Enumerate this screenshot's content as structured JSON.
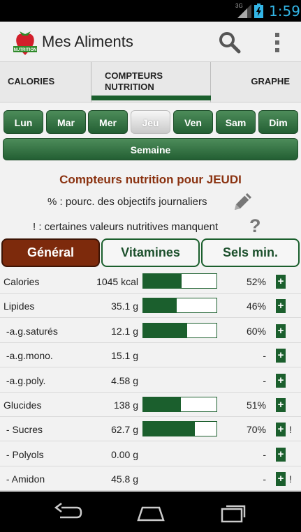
{
  "status_bar": {
    "network": "3G",
    "time": "1:59"
  },
  "app": {
    "title": "Mes Aliments",
    "logo_text": "Bretonte NUTRITION"
  },
  "tabs": [
    {
      "label": "CALORIES"
    },
    {
      "label": "COMPTEURS\nNUTRITION"
    },
    {
      "label": "GRAPHE"
    }
  ],
  "days": [
    "Lun",
    "Mar",
    "Mer",
    "Jeu",
    "Ven",
    "Sam",
    "Dim"
  ],
  "selected_day": "Jeu",
  "week_label": "Semaine",
  "heading": "Compteurs nutrition pour JEUDI",
  "info_percent": "% : pourc. des objectifs journaliers",
  "info_missing": "! : certaines valeurs nutritives manquent",
  "help_mark": "?",
  "subtabs": [
    {
      "label": "Général",
      "active": true
    },
    {
      "label": "Vitamines",
      "active": false
    },
    {
      "label": "Sels min.",
      "active": false
    }
  ],
  "rows": [
    {
      "name": "Calories",
      "value": "1045 kcal",
      "percent": "52%",
      "progress": 0.52,
      "plus": "+",
      "warn": ""
    },
    {
      "name": "Lipides",
      "value": "35.1 g",
      "percent": "46%",
      "progress": 0.46,
      "plus": "+",
      "warn": ""
    },
    {
      "name": " -a.g.saturés",
      "value": "12.1 g",
      "percent": "60%",
      "progress": 0.6,
      "plus": "+",
      "warn": ""
    },
    {
      "name": " -a.g.mono.",
      "value": "15.1 g",
      "percent": "-",
      "progress": null,
      "plus": "+",
      "warn": ""
    },
    {
      "name": " -a.g.poly.",
      "value": "4.58 g",
      "percent": "-",
      "progress": null,
      "plus": "+",
      "warn": ""
    },
    {
      "name": "Glucides",
      "value": "138 g",
      "percent": "51%",
      "progress": 0.51,
      "plus": "+",
      "warn": ""
    },
    {
      "name": " - Sucres",
      "value": "62.7 g",
      "percent": "70%",
      "progress": 0.7,
      "plus": "+",
      "warn": "!"
    },
    {
      "name": " - Polyols",
      "value": "0.00 g",
      "percent": "-",
      "progress": null,
      "plus": "+",
      "warn": ""
    },
    {
      "name": " - Amidon",
      "value": "45.8 g",
      "percent": "-",
      "progress": null,
      "plus": "+",
      "warn": "!"
    }
  ],
  "colors": {
    "accent": "#1b5f2d",
    "active_tab": "#7d2a0c",
    "heading": "#8a3210",
    "status": "#33b5e5"
  }
}
